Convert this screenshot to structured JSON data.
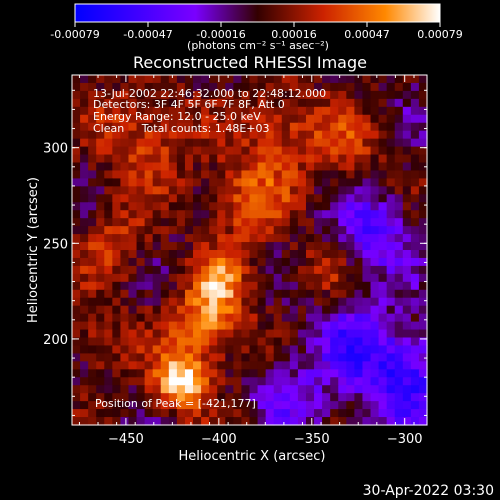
{
  "colorbar": {
    "tick_labels": [
      "-0.00079",
      "-0.00047",
      "-0.00016",
      "0.00016",
      "0.00047",
      "0.00079"
    ],
    "units": "(photons cm⁻² s⁻¹ asec⁻²)",
    "colors": [
      "#0000ff",
      "#7a00ff",
      "#330000",
      "#cc2200",
      "#ff8800",
      "#ffffff"
    ]
  },
  "annotations": {
    "time_range": "13-Jul-2002 22:46:32.000 to 22:48:12.000",
    "detectors": "Detectors: 3F 4F 5F 6F 7F 8F, Att 0",
    "energy_range": "Energy Range: 12.0 - 25.0 keV",
    "clean_counts": "Clean     Total counts: 1.48E+03",
    "peak": "Position of Peak = [-421,177]"
  },
  "footer_date": "30-Apr-2022 03:30",
  "chart_data": {
    "type": "heatmap",
    "title": "Reconstructed RHESSI Image",
    "xlabel": "Heliocentric X (arcsec)",
    "ylabel": "Heliocentric Y (arcsec)",
    "xlim": [
      -479,
      -288
    ],
    "ylim": [
      155,
      338
    ],
    "x_ticks": [
      -450,
      -400,
      -350,
      -300
    ],
    "y_ticks": [
      200,
      250,
      300
    ],
    "zlim": [
      -0.00079,
      0.00079
    ],
    "colormap": [
      "#0000ff",
      "#7a00ff",
      "#330000",
      "#cc2200",
      "#ff8800",
      "#ffffff"
    ],
    "peak": {
      "x": -421,
      "y": 177
    },
    "bright_regions": [
      {
        "x": -421,
        "y": 177,
        "sigma": 10,
        "amp": 1.0
      },
      {
        "x": -406,
        "y": 207,
        "sigma": 14,
        "amp": 0.7
      },
      {
        "x": -400,
        "y": 230,
        "sigma": 10,
        "amp": 0.55
      },
      {
        "x": -385,
        "y": 272,
        "sigma": 16,
        "amp": 0.5
      },
      {
        "x": -365,
        "y": 310,
        "sigma": 16,
        "amp": 0.45
      },
      {
        "x": -440,
        "y": 305,
        "sigma": 18,
        "amp": 0.45
      },
      {
        "x": -455,
        "y": 250,
        "sigma": 14,
        "amp": 0.35
      },
      {
        "x": -330,
        "y": 300,
        "sigma": 12,
        "amp": 0.35
      },
      {
        "x": -345,
        "y": 235,
        "sigma": 12,
        "amp": 0.3
      },
      {
        "x": -465,
        "y": 200,
        "sigma": 14,
        "amp": 0.3
      }
    ],
    "negative_regions": [
      {
        "x": -300,
        "y": 180,
        "sigma": 18,
        "amp": -0.7
      },
      {
        "x": -318,
        "y": 255,
        "sigma": 14,
        "amp": -0.55
      },
      {
        "x": -330,
        "y": 200,
        "sigma": 16,
        "amp": -0.45
      },
      {
        "x": -360,
        "y": 170,
        "sigma": 14,
        "amp": -0.35
      }
    ]
  }
}
